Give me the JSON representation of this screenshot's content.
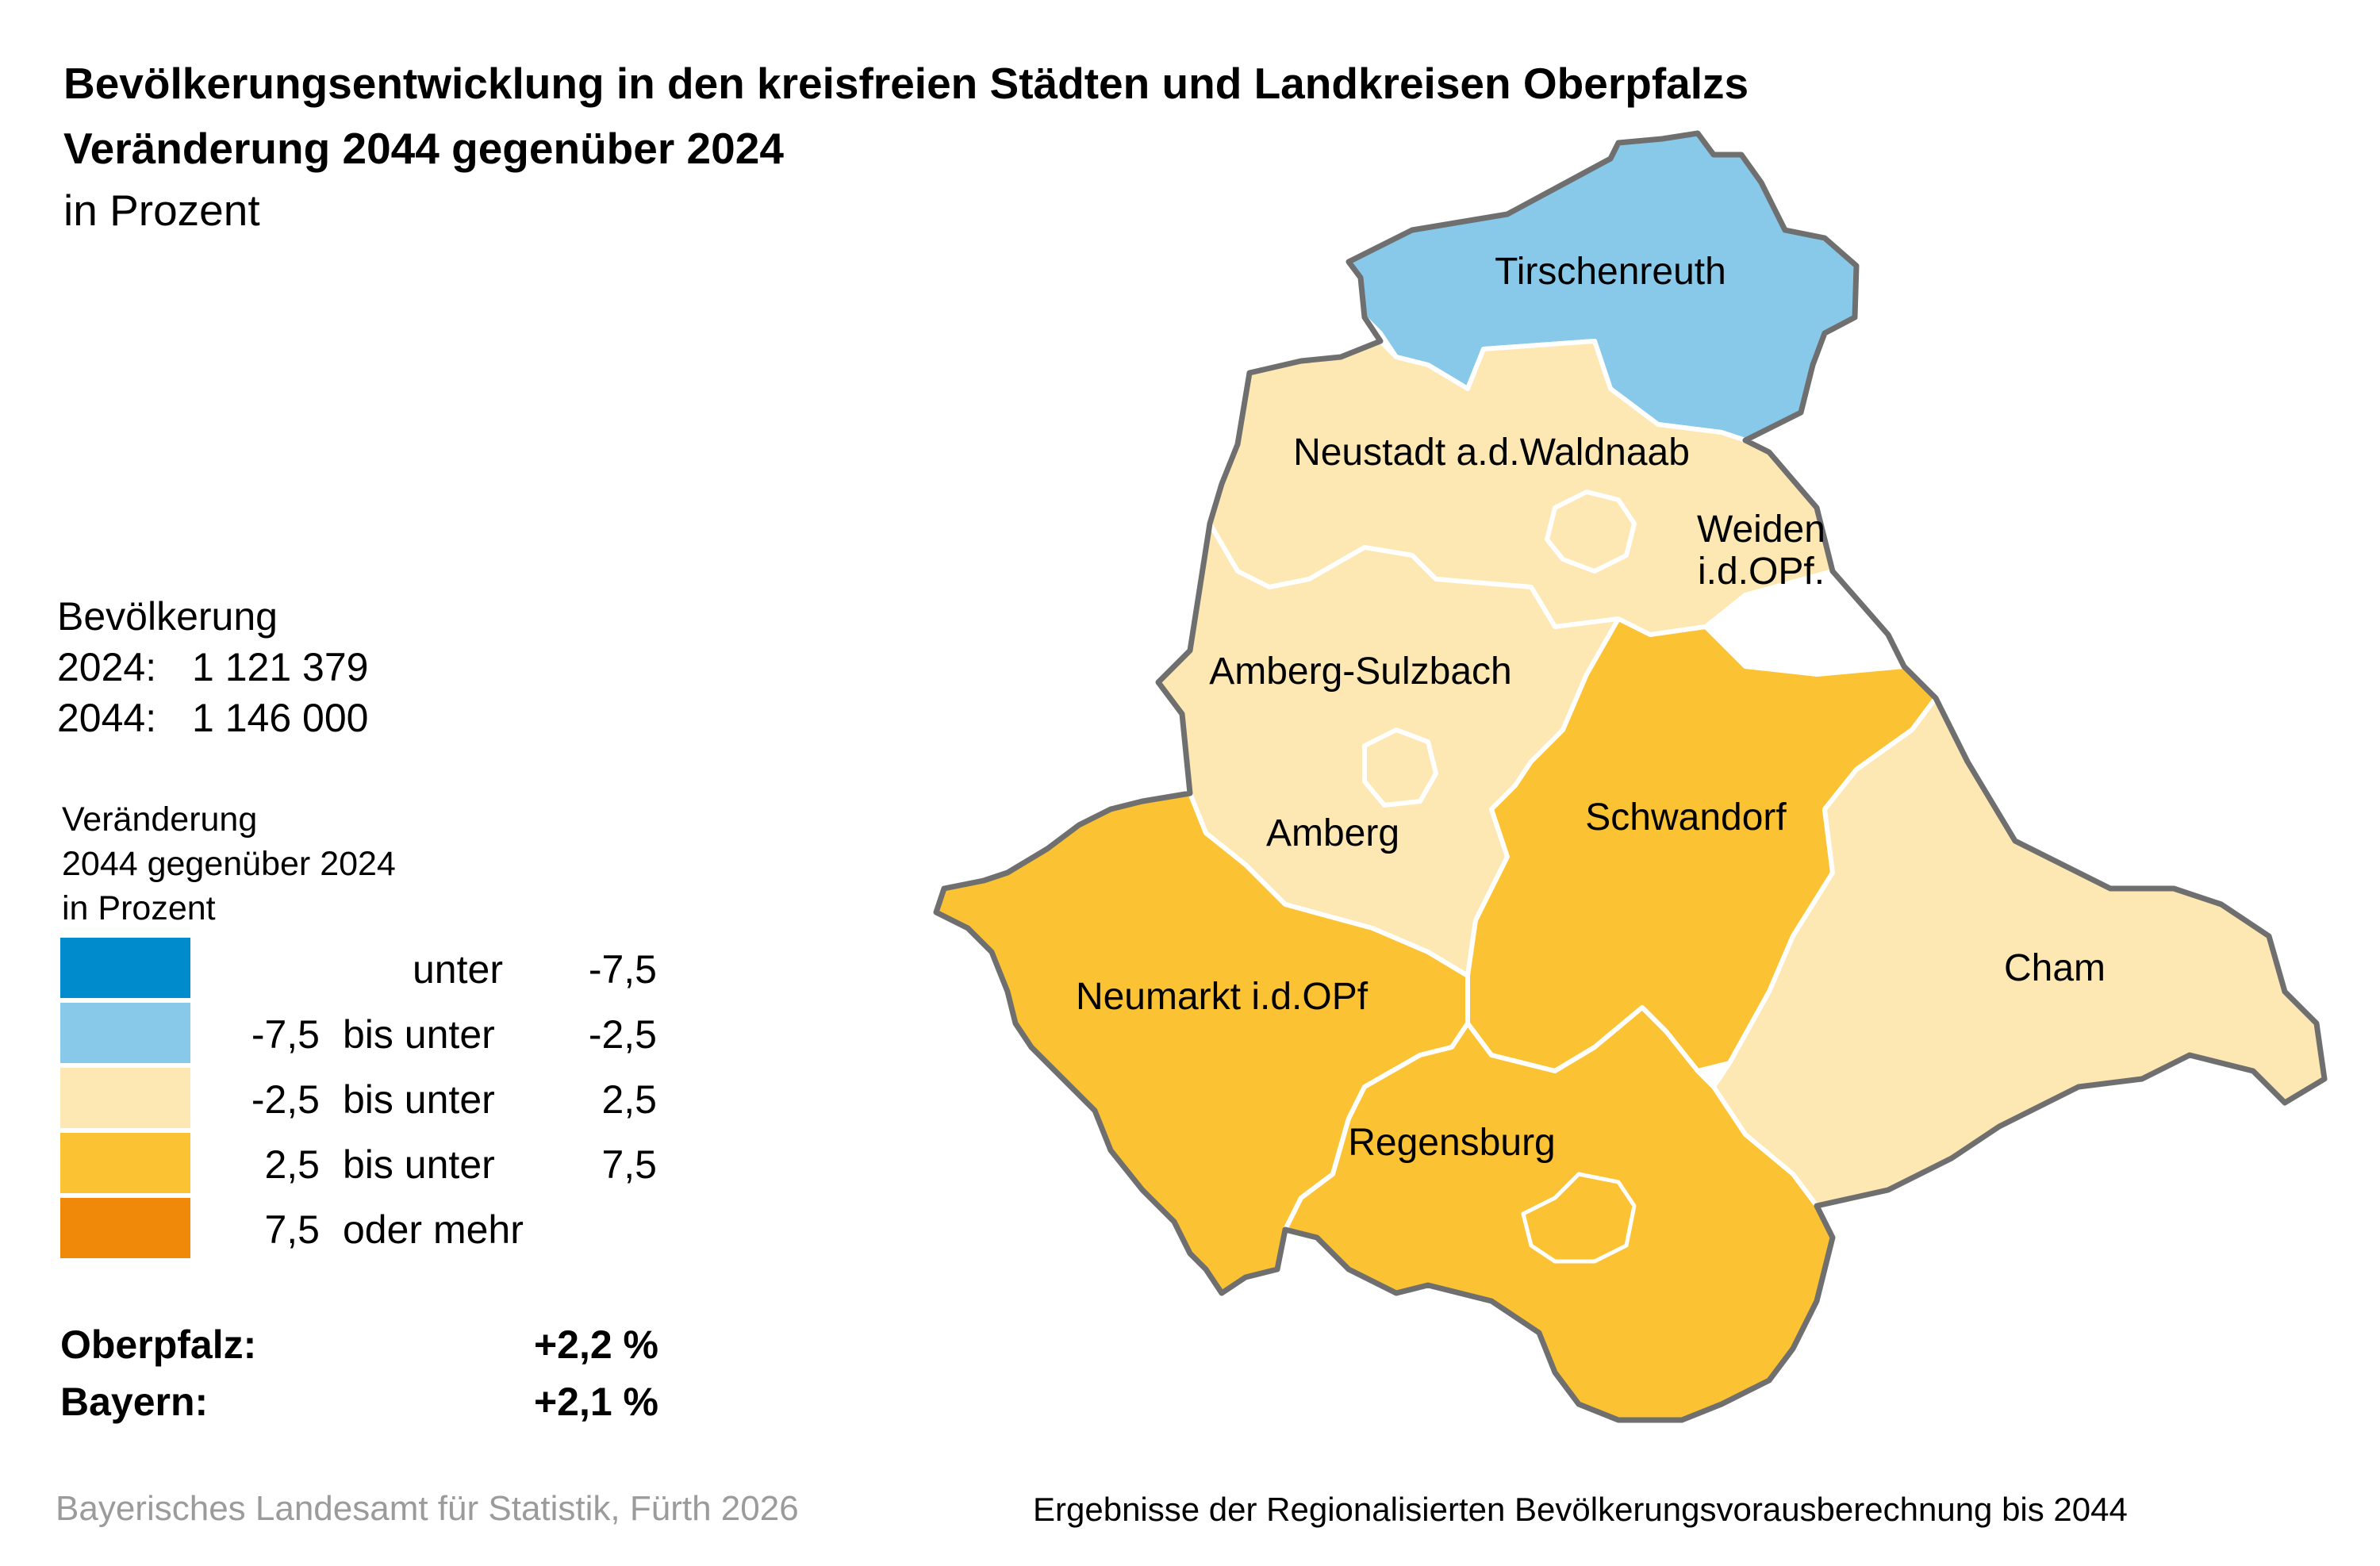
{
  "title": "Bevölkerungsentwicklung in den kreisfreien Städten und Landkreisen Oberpfalzs",
  "subtitle": "Veränderung 2044 gegenüber 2024",
  "unit": "in Prozent",
  "population": {
    "heading": "Bevölkerung",
    "rows": [
      {
        "year": "2024:",
        "value": "1 121 379"
      },
      {
        "year": "2044:",
        "value": "1 146 000"
      }
    ]
  },
  "legend": {
    "title_lines": [
      "Veränderung",
      "2044 gegenüber 2024",
      "in Prozent"
    ],
    "classes": [
      {
        "low": "",
        "connector": "unter",
        "high": "-7,5",
        "color": "#008ccc"
      },
      {
        "low": "-7,5",
        "connector": "bis unter",
        "high": "-2,5",
        "color": "#88c8e8"
      },
      {
        "low": "-2,5",
        "connector": "bis unter",
        "high": "2,5",
        "color": "#fde7b2"
      },
      {
        "low": "2,5",
        "connector": "bis unter",
        "high": "7,5",
        "color": "#fbc233"
      },
      {
        "low": "7,5",
        "connector": "oder mehr",
        "high": "",
        "color": "#f0880a"
      }
    ]
  },
  "summary": [
    {
      "label": "Oberpfalz:",
      "value": "+2,2 %"
    },
    {
      "label": "Bayern:",
      "value": "+2,1 %"
    }
  ],
  "regions": [
    {
      "name": "Tirschenreuth",
      "class": "-7,5 bis unter -2,5",
      "color": "#88c8e8"
    },
    {
      "name": "Neustadt a.d.Waldnaab",
      "class": "-2,5 bis unter 2,5",
      "color": "#fde7b2"
    },
    {
      "name": "Weiden i.d.OPf.",
      "label_lines": [
        "Weiden",
        "i.d.OPf."
      ],
      "class": "-2,5 bis unter 2,5",
      "color": "#fde7b2"
    },
    {
      "name": "Amberg-Sulzbach",
      "class": "-2,5 bis unter 2,5",
      "color": "#fde7b2"
    },
    {
      "name": "Amberg",
      "class": "-2,5 bis unter 2,5",
      "color": "#fde7b2"
    },
    {
      "name": "Schwandorf",
      "class": "2,5 bis unter 7,5",
      "color": "#fbc233"
    },
    {
      "name": "Cham",
      "class": "-2,5 bis unter 2,5",
      "color": "#fde7b2"
    },
    {
      "name": "Neumarkt i.d.OPf",
      "class": "2,5 bis unter 7,5",
      "color": "#fbc233"
    },
    {
      "name": "Regensburg",
      "class": "2,5 bis unter 7,5",
      "color": "#fbc233"
    }
  ],
  "source": "Bayerisches Landesamt für Statistik, Fürth 2026",
  "note": "Ergebnisse der Regionalisierten Bevölkerungsvorausberechnung bis 2044"
}
